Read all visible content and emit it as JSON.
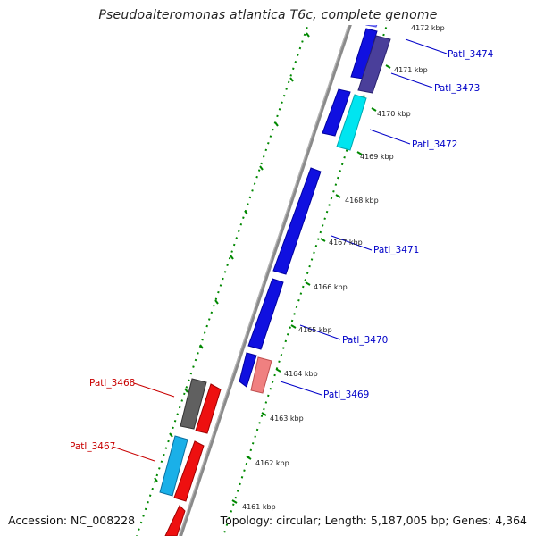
{
  "title": "Pseudoalteromonas atlantica T6c, complete genome",
  "footer": {
    "accession": "Accession: NC_008228",
    "topology": "Topology: circular; Length: 5,187,005 bp; Genes: 4,364"
  },
  "colors": {
    "forward_label": "#0000c8",
    "reverse_label": "#c80000",
    "backbone": "#7a7a7a",
    "ticks": "#008800"
  },
  "kbp_ticks": [
    "4172 kbp",
    "4171 kbp",
    "4170 kbp",
    "4169 kbp",
    "4168 kbp",
    "4167 kbp",
    "4166 kbp",
    "4165 kbp",
    "4164 kbp",
    "4163 kbp",
    "4162 kbp",
    "4161 kbp"
  ],
  "gene_labels": [
    {
      "id": "Patl_3474",
      "strand": "forward"
    },
    {
      "id": "Patl_3473",
      "strand": "forward"
    },
    {
      "id": "Patl_3472",
      "strand": "forward"
    },
    {
      "id": "Patl_3471",
      "strand": "forward"
    },
    {
      "id": "Patl_3470",
      "strand": "forward"
    },
    {
      "id": "Patl_3469",
      "strand": "forward"
    },
    {
      "id": "Patl_3468",
      "strand": "reverse"
    },
    {
      "id": "Patl_3467",
      "strand": "reverse"
    }
  ]
}
